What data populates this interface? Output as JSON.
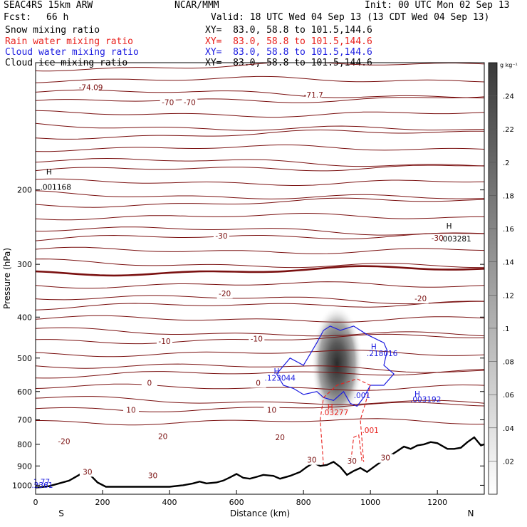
{
  "header": {
    "model": "SEAC4RS 15km ARW",
    "center": "NCAR/MMM",
    "init": "Init: 00 UTC Mon 02 Sep 13",
    "fcst_label": "Fcst:",
    "fcst_value": "66 h",
    "valid": "Valid: 18 UTC Wed 04 Sep 13 (13 CDT Wed 04 Sep 13)",
    "fields": [
      {
        "name": "Snow mixing ratio",
        "xy": "XY=  83.0, 58.8 to 101.5,144.6",
        "color": "#000000"
      },
      {
        "name": "Rain water mixing ratio",
        "xy": "XY=  83.0, 58.8 to 101.5,144.6",
        "color": "#e8201c"
      },
      {
        "name": "Cloud water mixing ratio",
        "xy": "XY=  83.0, 58.8 to 101.5,144.6",
        "color": "#1c1ce0"
      },
      {
        "name": "Cloud ice mixing ratio",
        "xy": "XY=  83.0, 58.8 to 101.5,144.6",
        "color": "#000000"
      }
    ]
  },
  "chart_data": {
    "type": "contour",
    "xlabel": "Distance (km)",
    "ylabel": "Pressure (hPa)",
    "x_ticks": [
      0,
      200,
      400,
      600,
      800,
      1000,
      1200
    ],
    "y_ticks": [
      200,
      300,
      400,
      500,
      600,
      700,
      800,
      900,
      1000
    ],
    "xlim": [
      0,
      1340
    ],
    "ylim": [
      1050,
      100
    ],
    "y_scale": "log",
    "x_end_labels": {
      "left": "S",
      "right": "N"
    },
    "colorbar": {
      "unit": "g kg⁻¹",
      "ticks": [
        ".02",
        ".04",
        ".06",
        ".08",
        ".1",
        ".12",
        ".14",
        ".16",
        ".18",
        ".2",
        ".22",
        ".24"
      ]
    },
    "temperature_contour_labels": [
      {
        "text": "-74.09",
        "x": 165,
        "p": 116
      },
      {
        "text": "-70",
        "x": 395,
        "p": 126
      },
      {
        "text": "-70",
        "x": 460,
        "p": 126
      },
      {
        "text": "-71.7",
        "x": 830,
        "p": 121
      },
      {
        "text": "-30",
        "x": 555,
        "p": 261
      },
      {
        "text": "-30",
        "x": 1200,
        "p": 264
      },
      {
        "text": "-20",
        "x": 565,
        "p": 357
      },
      {
        "text": "-20",
        "x": 1150,
        "p": 367
      },
      {
        "text": "-10",
        "x": 385,
        "p": 463
      },
      {
        "text": "-10",
        "x": 660,
        "p": 457
      },
      {
        "text": "0",
        "x": 340,
        "p": 581
      },
      {
        "text": "0",
        "x": 665,
        "p": 581
      },
      {
        "text": "10",
        "x": 285,
        "p": 674
      },
      {
        "text": "10",
        "x": 705,
        "p": 674
      },
      {
        "text": "20",
        "x": 380,
        "p": 777
      },
      {
        "text": "20",
        "x": 730,
        "p": 782
      },
      {
        "text": "-20",
        "x": 85,
        "p": 799
      },
      {
        "text": "30",
        "x": 825,
        "p": 884
      },
      {
        "text": "30",
        "x": 945,
        "p": 889
      },
      {
        "text": "30",
        "x": 1045,
        "p": 874
      },
      {
        "text": "30",
        "x": 155,
        "p": 943
      },
      {
        "text": "30",
        "x": 350,
        "p": 962
      }
    ],
    "extrema_labels": [
      {
        "text": "H",
        "x": 40,
        "p": 184,
        "color": "#000000"
      },
      {
        "text": ".001168",
        "x": 60,
        "p": 200,
        "color": "#000000"
      },
      {
        "text": "H",
        "x": 1235,
        "p": 247,
        "color": "#000000"
      },
      {
        "text": ".003281",
        "x": 1255,
        "p": 265,
        "color": "#000000"
      },
      {
        "text": "H",
        "x": 1010,
        "p": 477,
        "color": "#1c1ce0"
      },
      {
        "text": ".218016",
        "x": 1035,
        "p": 495,
        "color": "#1c1ce0"
      },
      {
        "text": "H",
        "x": 720,
        "p": 545,
        "color": "#1c1ce0"
      },
      {
        "text": ".123044",
        "x": 730,
        "p": 565,
        "color": "#1c1ce0"
      },
      {
        "text": ".001",
        "x": 975,
        "p": 622,
        "color": "#1c1ce0"
      },
      {
        "text": "H",
        "x": 1140,
        "p": 617,
        "color": "#1c1ce0"
      },
      {
        "text": ".003192",
        "x": 1165,
        "p": 635,
        "color": "#1c1ce0"
      },
      {
        "text": "H",
        "x": 880,
        "p": 662,
        "color": "#e8201c"
      },
      {
        "text": ".03277",
        "x": 895,
        "p": 682,
        "color": "#e8201c"
      },
      {
        "text": ".001",
        "x": 1000,
        "p": 752,
        "color": "#e8201c"
      },
      {
        "text": "1.77",
        "x": 18,
        "p": 996,
        "color": "#1c1ce0"
      },
      {
        "text": ".2361",
        "x": 20,
        "p": 1014,
        "color": "#1c1ce0"
      }
    ],
    "terrain": {
      "x": [
        0,
        15,
        40,
        70,
        100,
        125,
        145,
        160,
        185,
        210,
        240,
        280,
        320,
        360,
        400,
        440,
        470,
        490,
        510,
        540,
        560,
        580,
        600,
        620,
        640,
        660,
        680,
        710,
        730,
        760,
        790,
        810,
        830,
        850,
        870,
        890,
        910,
        930,
        950,
        970,
        990,
        1010,
        1040,
        1060,
        1080,
        1100,
        1120,
        1140,
        1160,
        1180,
        1200,
        1230,
        1250,
        1270,
        1290,
        1310,
        1330,
        1340
      ],
      "p": [
        1012,
        1010,
        1005,
        990,
        975,
        950,
        930,
        940,
        985,
        1008,
        1008,
        1008,
        1008,
        1008,
        1008,
        1000,
        990,
        980,
        990,
        985,
        975,
        958,
        940,
        960,
        965,
        955,
        945,
        950,
        965,
        950,
        930,
        905,
        885,
        900,
        895,
        880,
        905,
        945,
        925,
        910,
        930,
        905,
        870,
        850,
        830,
        810,
        820,
        805,
        800,
        790,
        795,
        820,
        820,
        815,
        790,
        770,
        805,
        800
      ]
    },
    "snow_shading": {
      "center_x": 900,
      "center_p": 515,
      "max": 0.26
    }
  }
}
